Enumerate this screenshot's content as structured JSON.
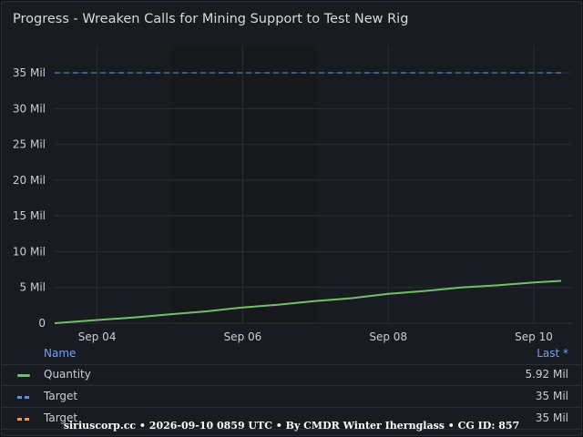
{
  "panel": {
    "title": "Progress - Wreaken Calls for Mining Support to Test New Rig"
  },
  "colors": {
    "background": "#181b1f",
    "grid": "#2a2d33",
    "quantity": "#73bf69",
    "target_blue": "#5794f2",
    "target_orange": "#ff9830",
    "legend_header": "#6e9fff"
  },
  "chart_data": {
    "type": "line",
    "y_tick_labels": [
      "0",
      "5 Mil",
      "10 Mil",
      "15 Mil",
      "20 Mil",
      "25 Mil",
      "30 Mil",
      "35 Mil"
    ],
    "x_tick_labels": [
      "Sep 04",
      "Sep 06",
      "Sep 08",
      "Sep 10"
    ],
    "ylim": [
      0,
      35000000
    ],
    "grid": true,
    "legend_placement": "bottom",
    "x_start": "2026-09-03T10:00",
    "x_end": "2026-09-10T09:00",
    "series": [
      {
        "name": "Quantity",
        "color": "#73bf69",
        "style": "solid",
        "points": [
          [
            "2026-09-03T10:00",
            0
          ],
          [
            "2026-09-04T00:00",
            450000
          ],
          [
            "2026-09-04T12:00",
            800000
          ],
          [
            "2026-09-05T00:00",
            1250000
          ],
          [
            "2026-09-05T12:00",
            1650000
          ],
          [
            "2026-09-06T00:00",
            2200000
          ],
          [
            "2026-09-06T12:00",
            2600000
          ],
          [
            "2026-09-07T00:00",
            3100000
          ],
          [
            "2026-09-07T12:00",
            3500000
          ],
          [
            "2026-09-08T00:00",
            4100000
          ],
          [
            "2026-09-08T12:00",
            4500000
          ],
          [
            "2026-09-09T00:00",
            5000000
          ],
          [
            "2026-09-09T12:00",
            5300000
          ],
          [
            "2026-09-10T00:00",
            5700000
          ],
          [
            "2026-09-10T09:00",
            5920000
          ]
        ]
      },
      {
        "name": "Target",
        "color": "#5794f2",
        "style": "dashed",
        "points": [
          [
            "2026-09-03T10:00",
            35000000
          ],
          [
            "2026-09-10T09:00",
            35000000
          ]
        ]
      }
    ]
  },
  "legend": {
    "name_header": "Name",
    "last_header": "Last *",
    "rows": [
      {
        "name": "Quantity",
        "last": "5.92 Mil",
        "swatch": "solid"
      },
      {
        "name": "Target",
        "last": "35 Mil",
        "swatch": "dash-blue"
      },
      {
        "name": "Target",
        "last": "35 Mil",
        "swatch": "dash-orange"
      }
    ]
  },
  "footer": {
    "text": "siriuscorp.cc • 2026-09-10 0859 UTC • By CMDR Winter Ihernglass • CG ID: 857"
  }
}
